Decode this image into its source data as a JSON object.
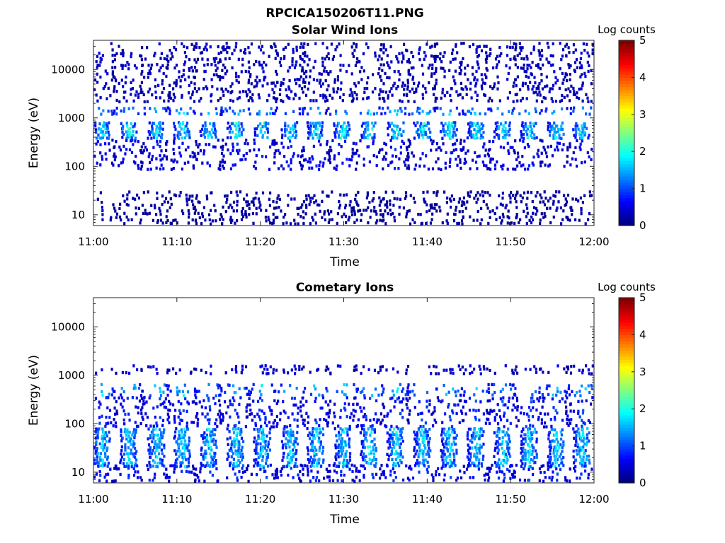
{
  "figure": {
    "title": "RPCICA150206T11.PNG"
  },
  "colorbar": {
    "label": "Log counts",
    "ticks": [
      "0",
      "1",
      "2",
      "3",
      "4",
      "5"
    ],
    "range": [
      0,
      5
    ],
    "colormap": "jet"
  },
  "chart_data": [
    {
      "type": "heatmap",
      "title": "Solar Wind Ions",
      "xlabel": "Time",
      "ylabel": "Energy (eV)",
      "xlim": [
        "11:00",
        "12:00"
      ],
      "ylim": [
        6,
        40000
      ],
      "yscale": "log",
      "x_ticks": [
        "11:00",
        "11:10",
        "11:20",
        "11:30",
        "11:40",
        "11:50",
        "12:00"
      ],
      "y_ticks": [
        "10",
        "100",
        "1000",
        "10000"
      ],
      "colorbar": "Log counts",
      "crange": [
        0,
        5
      ],
      "sweep_times_min": [
        1.0,
        4.2,
        7.5,
        10.6,
        13.8,
        17.0,
        20.2,
        23.5,
        26.6,
        29.8,
        33.0,
        36.2,
        39.4,
        42.6,
        45.8,
        49.0,
        52.2,
        55.4,
        58.5
      ],
      "components": [
        {
          "energy_low": 350,
          "energy_high": 800,
          "peak_log_counts": 2.2
        },
        {
          "energy_low": 1100,
          "energy_high": 1600,
          "peak_log_counts": 1.8
        },
        {
          "energy_low": 80,
          "energy_high": 350,
          "peak_log_counts": 0.8
        },
        {
          "energy_low": 6,
          "energy_high": 30,
          "peak_log_counts": 0.3
        },
        {
          "energy_low": 2000,
          "energy_high": 40000,
          "peak_log_counts": 0.5
        }
      ]
    },
    {
      "type": "heatmap",
      "title": "Cometary Ions",
      "xlabel": "Time",
      "ylabel": "Energy (eV)",
      "xlim": [
        "11:00",
        "12:00"
      ],
      "ylim": [
        6,
        40000
      ],
      "yscale": "log",
      "x_ticks": [
        "11:00",
        "11:10",
        "11:20",
        "11:30",
        "11:40",
        "11:50",
        "12:00"
      ],
      "y_ticks": [
        "10",
        "100",
        "1000",
        "10000"
      ],
      "colorbar": "Log counts",
      "crange": [
        0,
        5
      ],
      "sweep_times_min": [
        1.0,
        4.2,
        7.5,
        10.6,
        13.8,
        17.0,
        20.2,
        23.5,
        26.6,
        29.8,
        33.0,
        36.2,
        39.4,
        42.6,
        45.8,
        49.0,
        52.2,
        55.4,
        58.5
      ],
      "components": [
        {
          "energy_low": 12,
          "energy_high": 80,
          "peak_log_counts": 2.1
        },
        {
          "energy_low": 80,
          "energy_high": 350,
          "peak_log_counts": 1.0
        },
        {
          "energy_low": 350,
          "energy_high": 650,
          "peak_log_counts": 1.8
        },
        {
          "energy_low": 6,
          "energy_high": 14,
          "peak_log_counts": 1.0
        },
        {
          "energy_low": 1000,
          "energy_high": 1600,
          "peak_log_counts": 0.6
        }
      ]
    }
  ]
}
